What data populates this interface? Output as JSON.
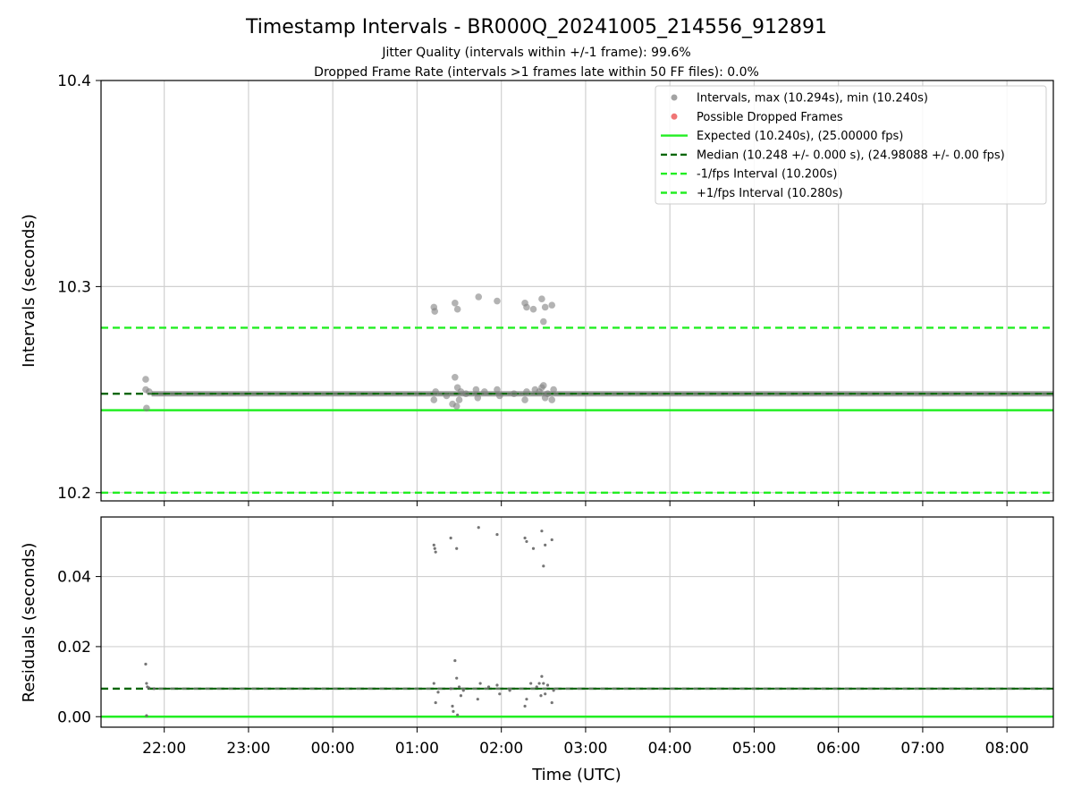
{
  "chart_data": {
    "title": "Timestamp Intervals - BR000Q_20241005_214556_912891",
    "subtitle_lines": [
      "Jitter Quality (intervals within +/-1 frame): 99.6%",
      "Dropped Frame Rate (intervals >1 frames late within 50 FF files): 0.0%"
    ],
    "xlabel": "Time (UTC)",
    "x_ticks": [
      "22:00",
      "23:00",
      "00:00",
      "01:00",
      "02:00",
      "03:00",
      "04:00",
      "05:00",
      "06:00",
      "07:00",
      "08:00"
    ],
    "x_tick_hours": [
      22,
      23,
      24,
      25,
      26,
      27,
      28,
      29,
      30,
      31,
      32
    ],
    "x_range_hours": [
      21.25,
      32.55
    ],
    "panels": [
      {
        "type": "scatter",
        "ylabel": "Intervals (seconds)",
        "ylim": [
          10.196,
          10.4
        ],
        "y_ticks": [
          10.2,
          10.3,
          10.4
        ],
        "y_tick_labels": [
          "10.2",
          "10.3",
          "10.4"
        ],
        "grid": true,
        "legend_position": "top-right",
        "legend": [
          {
            "label": "Intervals, max (10.294s), min (10.240s)",
            "kind": "dot",
            "color": "#999999"
          },
          {
            "label": "Possible Dropped Frames",
            "kind": "dot",
            "color": "#ee6666"
          },
          {
            "label": "Expected (10.240s), (25.00000 fps)",
            "kind": "solid",
            "color": "#22ee22"
          },
          {
            "label": "Median (10.248 +/- 0.000 s), (24.98088 +/- 0.00 fps)",
            "kind": "dashed",
            "color": "#006600"
          },
          {
            "label": "-1/fps Interval (10.200s)",
            "kind": "dashed",
            "color": "#22ee22"
          },
          {
            "label": "+1/fps Interval (10.280s)",
            "kind": "dashed",
            "color": "#22ee22"
          }
        ],
        "baseline": 10.248,
        "lines": [
          {
            "name": "Expected",
            "y": 10.24,
            "style": "solid",
            "color": "#22ee22"
          },
          {
            "name": "Median",
            "y": 10.248,
            "style": "dashed",
            "color": "#006600"
          },
          {
            "name": "-1/fps Interval",
            "y": 10.2,
            "style": "dashed",
            "color": "#22ee22"
          },
          {
            "name": "+1/fps Interval",
            "y": 10.28,
            "style": "dashed",
            "color": "#22ee22"
          }
        ],
        "points": [
          {
            "x": 21.78,
            "y": 10.255
          },
          {
            "x": 21.79,
            "y": 10.241
          },
          {
            "x": 21.78,
            "y": 10.25
          },
          {
            "x": 21.82,
            "y": 10.249
          },
          {
            "x": 25.2,
            "y": 10.29
          },
          {
            "x": 25.21,
            "y": 10.288
          },
          {
            "x": 25.45,
            "y": 10.292
          },
          {
            "x": 25.48,
            "y": 10.289
          },
          {
            "x": 25.73,
            "y": 10.295
          },
          {
            "x": 25.95,
            "y": 10.293
          },
          {
            "x": 26.28,
            "y": 10.292
          },
          {
            "x": 26.3,
            "y": 10.29
          },
          {
            "x": 26.38,
            "y": 10.289
          },
          {
            "x": 26.48,
            "y": 10.294
          },
          {
            "x": 26.5,
            "y": 10.283
          },
          {
            "x": 26.52,
            "y": 10.29
          },
          {
            "x": 26.6,
            "y": 10.291
          },
          {
            "x": 25.2,
            "y": 10.245
          },
          {
            "x": 25.22,
            "y": 10.249
          },
          {
            "x": 25.35,
            "y": 10.247
          },
          {
            "x": 25.42,
            "y": 10.243
          },
          {
            "x": 25.45,
            "y": 10.256
          },
          {
            "x": 25.47,
            "y": 10.242
          },
          {
            "x": 25.48,
            "y": 10.251
          },
          {
            "x": 25.5,
            "y": 10.245
          },
          {
            "x": 25.52,
            "y": 10.249
          },
          {
            "x": 25.58,
            "y": 10.248
          },
          {
            "x": 25.7,
            "y": 10.25
          },
          {
            "x": 25.72,
            "y": 10.246
          },
          {
            "x": 25.8,
            "y": 10.249
          },
          {
            "x": 25.95,
            "y": 10.25
          },
          {
            "x": 25.98,
            "y": 10.247
          },
          {
            "x": 26.15,
            "y": 10.248
          },
          {
            "x": 26.28,
            "y": 10.245
          },
          {
            "x": 26.3,
            "y": 10.249
          },
          {
            "x": 26.4,
            "y": 10.25
          },
          {
            "x": 26.45,
            "y": 10.249
          },
          {
            "x": 26.48,
            "y": 10.251
          },
          {
            "x": 26.5,
            "y": 10.252
          },
          {
            "x": 26.52,
            "y": 10.246
          },
          {
            "x": 26.55,
            "y": 10.248
          },
          {
            "x": 26.6,
            "y": 10.245
          },
          {
            "x": 26.62,
            "y": 10.25
          }
        ]
      },
      {
        "type": "scatter",
        "ylabel": "Residuals (seconds)",
        "ylim": [
          -0.003,
          0.057
        ],
        "y_ticks": [
          0.0,
          0.02,
          0.04
        ],
        "y_tick_labels": [
          "0.00",
          "0.02",
          "0.04"
        ],
        "grid": true,
        "baseline": 0.008,
        "lines": [
          {
            "name": "Expected",
            "y": 0.0,
            "style": "solid",
            "color": "#22ee22"
          },
          {
            "name": "Median",
            "y": 0.008,
            "style": "dashed",
            "color": "#006600"
          }
        ],
        "points": [
          {
            "x": 21.78,
            "y": 0.015
          },
          {
            "x": 21.79,
            "y": 0.0095
          },
          {
            "x": 21.8,
            "y": 0.0085
          },
          {
            "x": 21.82,
            "y": 0.0082
          },
          {
            "x": 21.88,
            "y": 0.008
          },
          {
            "x": 21.79,
            "y": 0.0003
          },
          {
            "x": 25.2,
            "y": 0.049
          },
          {
            "x": 25.21,
            "y": 0.048
          },
          {
            "x": 25.22,
            "y": 0.047
          },
          {
            "x": 25.4,
            "y": 0.051
          },
          {
            "x": 25.47,
            "y": 0.048
          },
          {
            "x": 25.73,
            "y": 0.054
          },
          {
            "x": 25.95,
            "y": 0.052
          },
          {
            "x": 26.28,
            "y": 0.051
          },
          {
            "x": 26.3,
            "y": 0.05
          },
          {
            "x": 26.38,
            "y": 0.048
          },
          {
            "x": 26.48,
            "y": 0.053
          },
          {
            "x": 26.5,
            "y": 0.043
          },
          {
            "x": 26.52,
            "y": 0.049
          },
          {
            "x": 26.6,
            "y": 0.0505
          },
          {
            "x": 25.2,
            "y": 0.0095
          },
          {
            "x": 25.22,
            "y": 0.004
          },
          {
            "x": 25.25,
            "y": 0.007
          },
          {
            "x": 25.4,
            "y": 0.008
          },
          {
            "x": 25.42,
            "y": 0.003
          },
          {
            "x": 25.43,
            "y": 0.0015
          },
          {
            "x": 25.45,
            "y": 0.016
          },
          {
            "x": 25.47,
            "y": 0.011
          },
          {
            "x": 25.48,
            "y": 0.0005
          },
          {
            "x": 25.5,
            "y": 0.0085
          },
          {
            "x": 25.52,
            "y": 0.006
          },
          {
            "x": 25.55,
            "y": 0.0075
          },
          {
            "x": 25.72,
            "y": 0.005
          },
          {
            "x": 25.75,
            "y": 0.0095
          },
          {
            "x": 25.85,
            "y": 0.0085
          },
          {
            "x": 25.95,
            "y": 0.009
          },
          {
            "x": 25.98,
            "y": 0.0065
          },
          {
            "x": 26.1,
            "y": 0.0075
          },
          {
            "x": 26.28,
            "y": 0.003
          },
          {
            "x": 26.3,
            "y": 0.005
          },
          {
            "x": 26.35,
            "y": 0.0095
          },
          {
            "x": 26.42,
            "y": 0.0085
          },
          {
            "x": 26.45,
            "y": 0.0095
          },
          {
            "x": 26.47,
            "y": 0.006
          },
          {
            "x": 26.48,
            "y": 0.0115
          },
          {
            "x": 26.5,
            "y": 0.0095
          },
          {
            "x": 26.52,
            "y": 0.0065
          },
          {
            "x": 26.55,
            "y": 0.009
          },
          {
            "x": 26.6,
            "y": 0.004
          },
          {
            "x": 26.62,
            "y": 0.0075
          }
        ]
      }
    ]
  }
}
